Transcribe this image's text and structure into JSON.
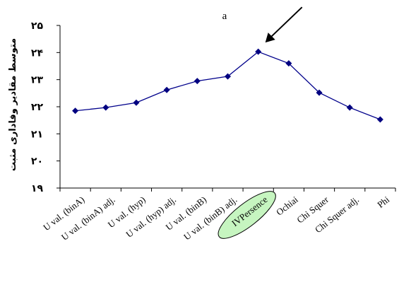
{
  "chart_data": {
    "type": "line",
    "title": "a",
    "ylabel": "متوسط مقادیر وفاداری مثبت",
    "xlabel": "",
    "ylim": [
      19,
      25
    ],
    "yticks": [
      "۱۹",
      "۲۰",
      "۲۱",
      "۲۲",
      "۲۳",
      "۲۴",
      "۲۵"
    ],
    "categories": [
      "U val. (binA)",
      "U val. (binA) adj.",
      "U val. (hyp)",
      "U val. (hyp) adj.",
      "U val. (binB)",
      "U val. (binB) adj.",
      "IVPersence",
      "Ochiai",
      "Chi Squer",
      "Chi Squer adj.",
      "Phi"
    ],
    "series": [
      {
        "values": [
          21.85,
          21.97,
          22.15,
          22.62,
          22.95,
          23.12,
          24.03,
          23.6,
          22.52,
          21.97,
          21.53
        ]
      }
    ],
    "highlighted_category": "IVPersence",
    "colors": {
      "line": "#00008B",
      "marker": "#000080",
      "highlight_fill": "#C6F5C0",
      "axis": "#000000"
    },
    "annotations": [
      "arrow pointing to IVPersence peak"
    ],
    "grid": false,
    "legend": "none"
  }
}
